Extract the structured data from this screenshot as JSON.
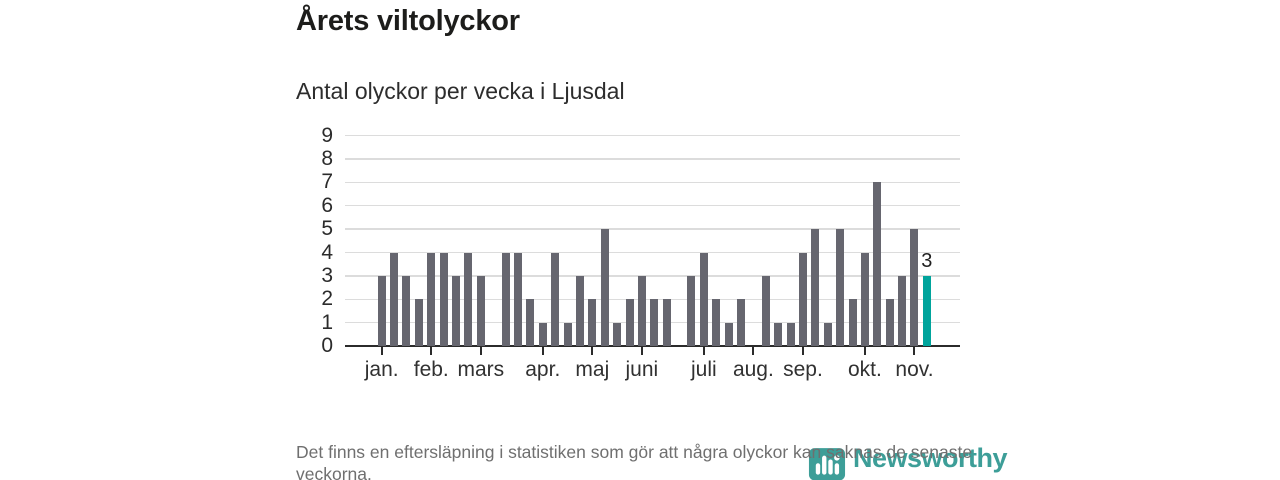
{
  "title": "Årets viltolyckor",
  "subtitle": "Antal olyckor per vecka i Ljusdal",
  "footnote": "Det finns en eftersläpning i statistiken som gör att några olyckor kan saknas de senaste veckorna.",
  "watermark": {
    "text": "Newsworthy"
  },
  "colors": {
    "bar": "#66666f",
    "bar_highlight": "#00a49c",
    "grid": "#dcdcdc",
    "axis": "#2b2b2b",
    "y_label": "#2b2b2b",
    "x_label": "#313131",
    "value_label": "#1f1f1f",
    "footnote": "#6f6f6f",
    "logo": "#3d9e98"
  },
  "chart_data": {
    "type": "bar",
    "title": "Årets viltolyckor",
    "subtitle": "Antal olyckor per vecka i Ljusdal",
    "x_unit": "vecka",
    "values": [
      3,
      4,
      3,
      2,
      4,
      4,
      3,
      4,
      3,
      0,
      4,
      4,
      2,
      1,
      4,
      1,
      3,
      2,
      5,
      1,
      2,
      3,
      2,
      2,
      0,
      3,
      4,
      2,
      1,
      2,
      0,
      3,
      1,
      1,
      4,
      5,
      1,
      5,
      2,
      4,
      7,
      2,
      3,
      5,
      3
    ],
    "highlight": {
      "index": 44,
      "value": 3,
      "label": "3"
    },
    "month_ticks": [
      {
        "index": 0,
        "label": "jan."
      },
      {
        "index": 4,
        "label": "feb."
      },
      {
        "index": 8,
        "label": "mars"
      },
      {
        "index": 13,
        "label": "apr."
      },
      {
        "index": 17,
        "label": "maj"
      },
      {
        "index": 21,
        "label": "juni"
      },
      {
        "index": 26,
        "label": "juli"
      },
      {
        "index": 30,
        "label": "aug."
      },
      {
        "index": 34,
        "label": "sep."
      },
      {
        "index": 39,
        "label": "okt."
      },
      {
        "index": 43,
        "label": "nov."
      }
    ],
    "ylim": [
      0,
      9
    ],
    "yticks": [
      0,
      1,
      2,
      3,
      4,
      5,
      6,
      7,
      8,
      9
    ],
    "grid": "horizontal",
    "legend": "none"
  }
}
